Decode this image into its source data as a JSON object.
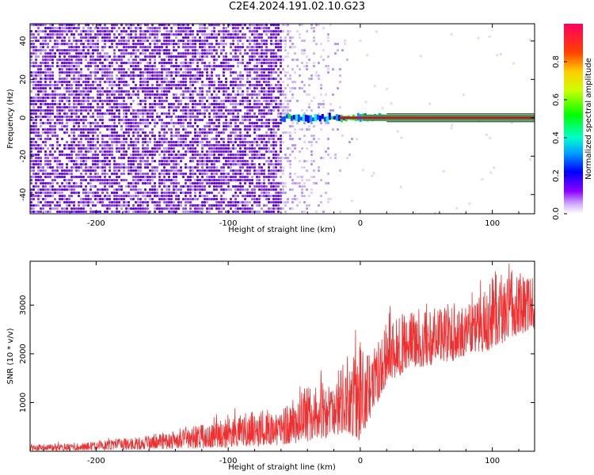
{
  "title": "C2E4.2024.191.02.10.G23",
  "chart_data": [
    {
      "type": "heatmap",
      "xlabel": "Height of straight line (km)",
      "ylabel": "Frequency (Hz)",
      "xlim": [
        -250,
        132
      ],
      "ylim": [
        -50,
        49
      ],
      "x_ticks": [
        -200,
        -100,
        0,
        100
      ],
      "y_ticks": [
        -40,
        -20,
        0,
        20,
        40
      ],
      "colorbar": {
        "label": "Normalized spectral amplitude",
        "range": [
          0,
          1
        ],
        "ticks": [
          0.0,
          0.2,
          0.4,
          0.6,
          0.8
        ]
      },
      "features": {
        "noise_region_x": [
          -250,
          -60
        ],
        "faded_noise_x": [
          -60,
          -10
        ],
        "carrier_line_frequency": 0,
        "carrier_start_x": -60,
        "solid_carrier_start_x": 20,
        "line_color": "#2a9d3a",
        "noise_color": "#6a00ff",
        "core_color": "#e8002a"
      }
    },
    {
      "type": "line",
      "xlabel": "Height of straight line (km)",
      "ylabel": "SNR (10 * v/v)",
      "xlim": [
        -250,
        132
      ],
      "ylim": [
        0,
        3900
      ],
      "x_ticks": [
        -200,
        -100,
        0,
        100
      ],
      "y_ticks": [
        1000,
        2000,
        3000
      ],
      "color": "#f03030",
      "envelope": {
        "x": [
          -250,
          -200,
          -150,
          -120,
          -100,
          -60,
          -40,
          -20,
          -10,
          0,
          10,
          20,
          40,
          60,
          80,
          100,
          120,
          132
        ],
        "upper": [
          130,
          200,
          350,
          550,
          750,
          900,
          1300,
          1500,
          2000,
          2100,
          2100,
          2700,
          2900,
          2950,
          3000,
          3400,
          3700,
          3650
        ],
        "lower": [
          10,
          20,
          40,
          60,
          80,
          120,
          200,
          300,
          400,
          200,
          800,
          1400,
          1700,
          1800,
          1900,
          2100,
          2400,
          2500
        ]
      }
    }
  ]
}
